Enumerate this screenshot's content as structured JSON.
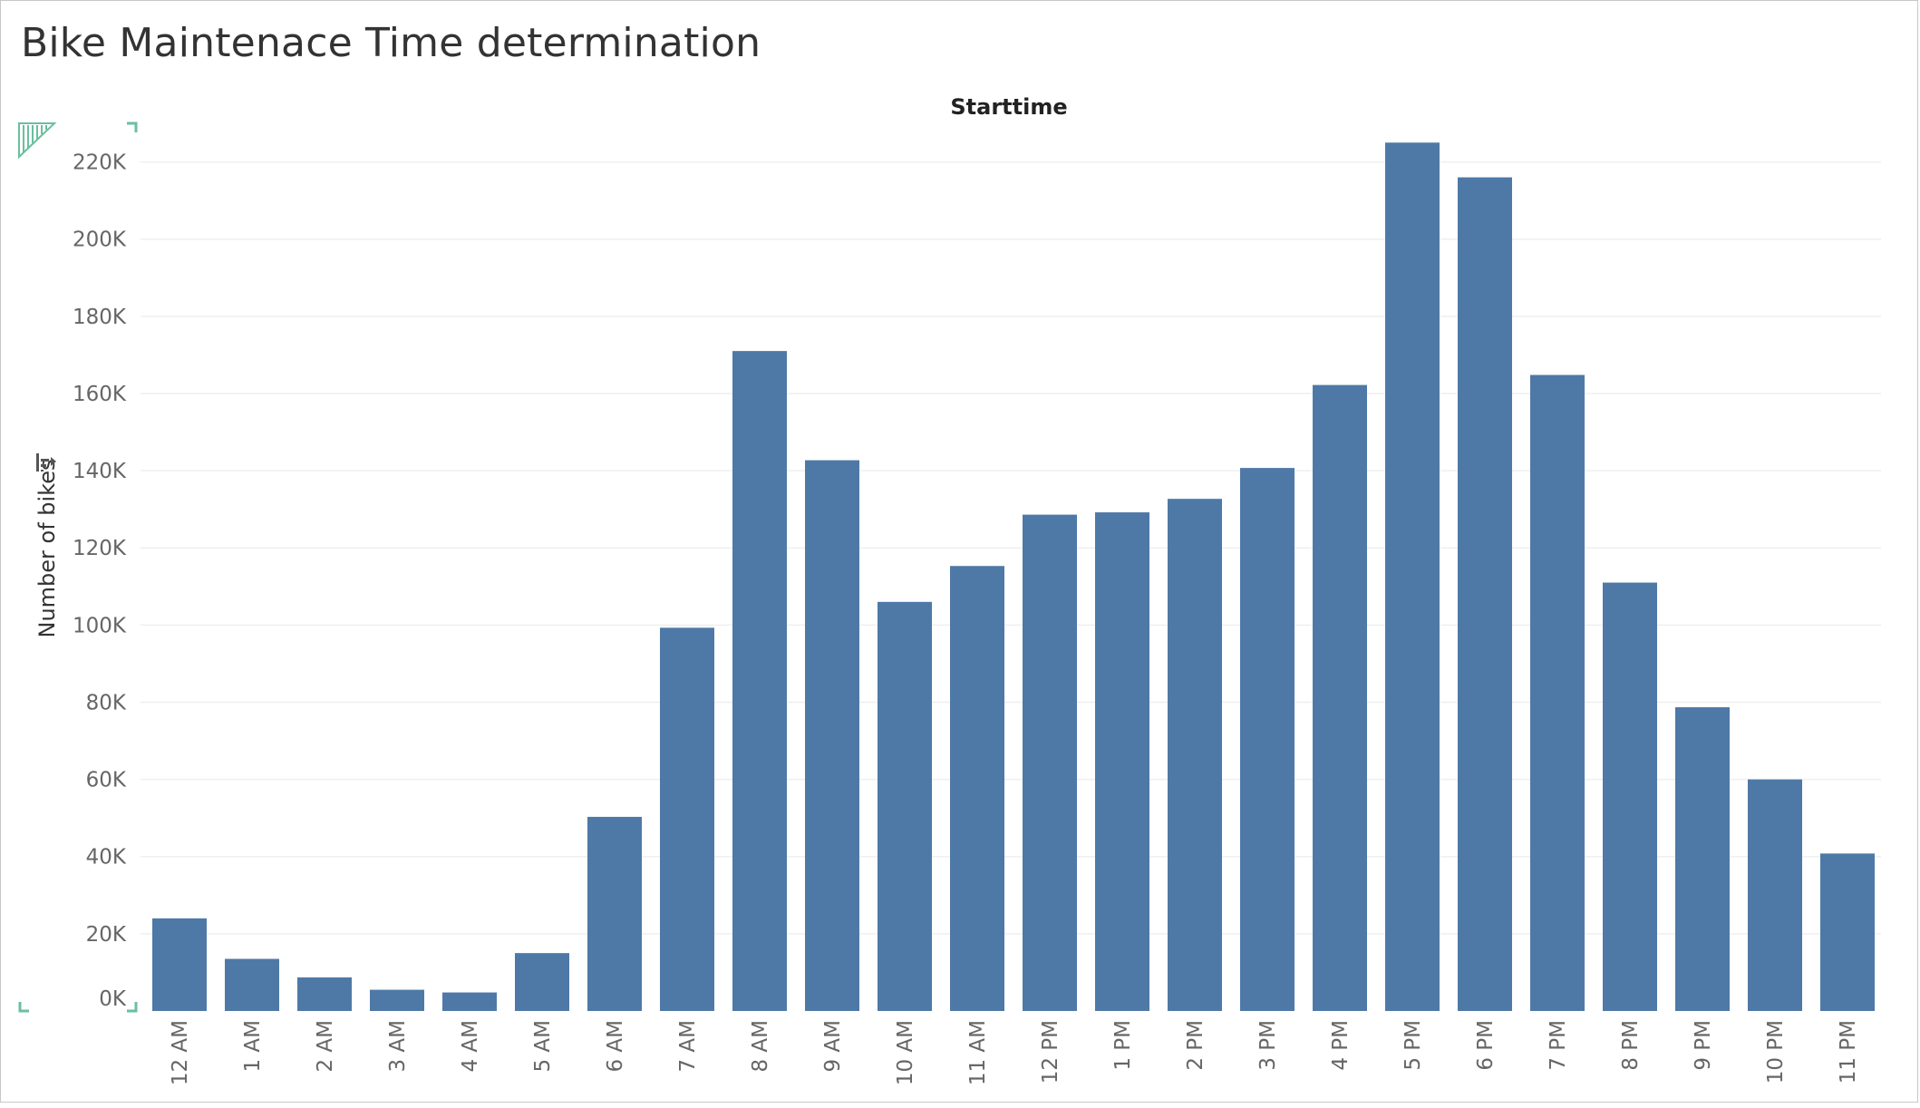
{
  "title": "Bike Maintenace Time determination",
  "colors": {
    "bar": "#4e79a7",
    "grid": "#efefef",
    "corner_marker": "#6abf9e"
  },
  "icons": {
    "sort": "sort-icon",
    "corner": "corner-marker-icon"
  },
  "chart_data": {
    "type": "bar",
    "title": "Bike Maintenace Time determination",
    "xlabel": "Starttime",
    "ylabel": "Number of bikes",
    "ylim": [
      0,
      230000
    ],
    "grid": true,
    "categories": [
      "12 AM",
      "1 AM",
      "2 AM",
      "3 AM",
      "4 AM",
      "5 AM",
      "6 AM",
      "7 AM",
      "8 AM",
      "9 AM",
      "10 AM",
      "11 AM",
      "12 PM",
      "1 PM",
      "2 PM",
      "3 PM",
      "4 PM",
      "5 PM",
      "6 PM",
      "7 PM",
      "8 PM",
      "9 PM",
      "10 PM",
      "11 PM"
    ],
    "values": [
      24000,
      13500,
      8700,
      5500,
      4800,
      15000,
      50300,
      99300,
      171000,
      142700,
      106000,
      115300,
      128600,
      129200,
      132700,
      140700,
      162200,
      225000,
      216000,
      164800,
      111000,
      78700,
      60000,
      40800
    ],
    "yticks": [
      0,
      20000,
      40000,
      60000,
      80000,
      100000,
      120000,
      140000,
      160000,
      180000,
      200000,
      220000
    ],
    "ytick_labels": [
      "0K",
      "20K",
      "40K",
      "60K",
      "80K",
      "100K",
      "120K",
      "140K",
      "160K",
      "180K",
      "200K",
      "220K"
    ]
  }
}
